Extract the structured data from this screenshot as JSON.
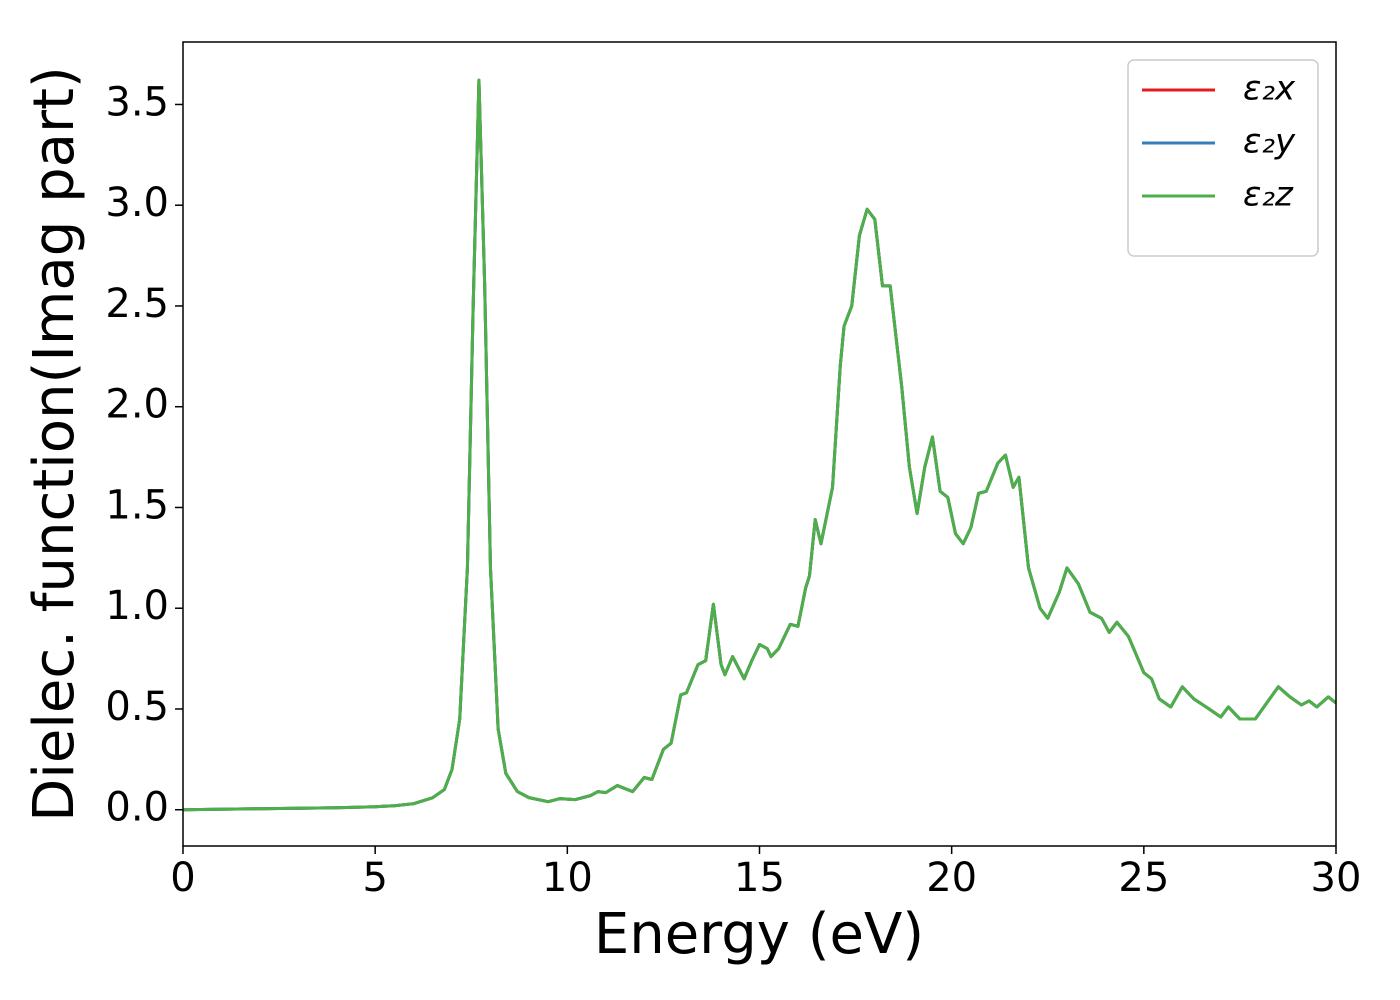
{
  "chart_data": {
    "type": "line",
    "xlabel": "Energy (eV)",
    "ylabel": "Dielec. function(Imag part)",
    "x": [
      0,
      2,
      4,
      5,
      5.5,
      6,
      6.5,
      6.8,
      7.0,
      7.2,
      7.4,
      7.55,
      7.7,
      7.85,
      8.0,
      8.2,
      8.4,
      8.7,
      9.0,
      9.5,
      9.8,
      10.2,
      10.6,
      10.8,
      11.0,
      11.3,
      11.7,
      12.0,
      12.2,
      12.5,
      12.7,
      12.95,
      13.1,
      13.4,
      13.6,
      13.8,
      14.0,
      14.1,
      14.3,
      14.6,
      14.8,
      15.0,
      15.2,
      15.3,
      15.5,
      15.8,
      16.0,
      16.2,
      16.3,
      16.45,
      16.6,
      16.9,
      17.1,
      17.2,
      17.4,
      17.6,
      17.8,
      18.0,
      18.2,
      18.4,
      18.7,
      18.9,
      19.1,
      19.3,
      19.5,
      19.7,
      19.9,
      20.1,
      20.3,
      20.5,
      20.7,
      20.9,
      21.2,
      21.4,
      21.6,
      21.75,
      22.0,
      22.3,
      22.5,
      22.8,
      23.0,
      23.3,
      23.6,
      23.9,
      24.1,
      24.3,
      24.6,
      25.0,
      25.2,
      25.4,
      25.7,
      26.0,
      26.3,
      26.7,
      27.0,
      27.2,
      27.5,
      27.9,
      28.2,
      28.5,
      28.8,
      29.1,
      29.3,
      29.5,
      29.8,
      30
    ],
    "series": [
      {
        "name": "ε₂x",
        "color": "#e41a1c",
        "values": [
          0.0,
          0.005,
          0.01,
          0.015,
          0.02,
          0.03,
          0.06,
          0.1,
          0.2,
          0.45,
          1.2,
          2.5,
          3.62,
          2.6,
          1.2,
          0.4,
          0.18,
          0.09,
          0.06,
          0.04,
          0.055,
          0.05,
          0.07,
          0.09,
          0.085,
          0.12,
          0.09,
          0.16,
          0.15,
          0.3,
          0.33,
          0.57,
          0.58,
          0.72,
          0.74,
          1.02,
          0.72,
          0.67,
          0.76,
          0.65,
          0.74,
          0.82,
          0.8,
          0.76,
          0.8,
          0.92,
          0.91,
          1.1,
          1.16,
          1.44,
          1.32,
          1.6,
          2.2,
          2.4,
          2.5,
          2.85,
          2.98,
          2.93,
          2.6,
          2.6,
          2.1,
          1.7,
          1.47,
          1.7,
          1.85,
          1.58,
          1.55,
          1.37,
          1.32,
          1.4,
          1.57,
          1.58,
          1.72,
          1.76,
          1.6,
          1.65,
          1.2,
          1.0,
          0.95,
          1.08,
          1.2,
          1.12,
          0.98,
          0.95,
          0.88,
          0.93,
          0.86,
          0.68,
          0.65,
          0.55,
          0.51,
          0.61,
          0.55,
          0.5,
          0.46,
          0.51,
          0.45,
          0.45,
          0.53,
          0.61,
          0.56,
          0.52,
          0.54,
          0.51,
          0.56,
          0.53
        ]
      },
      {
        "name": "ε₂y",
        "color": "#377eb8",
        "values": [
          0.0,
          0.005,
          0.01,
          0.015,
          0.02,
          0.03,
          0.06,
          0.1,
          0.2,
          0.45,
          1.2,
          2.5,
          3.62,
          2.6,
          1.2,
          0.4,
          0.18,
          0.09,
          0.06,
          0.04,
          0.055,
          0.05,
          0.07,
          0.09,
          0.085,
          0.12,
          0.09,
          0.16,
          0.15,
          0.3,
          0.33,
          0.57,
          0.58,
          0.72,
          0.74,
          1.02,
          0.72,
          0.67,
          0.76,
          0.65,
          0.74,
          0.82,
          0.8,
          0.76,
          0.8,
          0.92,
          0.91,
          1.1,
          1.16,
          1.44,
          1.32,
          1.6,
          2.2,
          2.4,
          2.5,
          2.85,
          2.98,
          2.93,
          2.6,
          2.6,
          2.1,
          1.7,
          1.47,
          1.7,
          1.85,
          1.58,
          1.55,
          1.37,
          1.32,
          1.4,
          1.57,
          1.58,
          1.72,
          1.76,
          1.6,
          1.65,
          1.2,
          1.0,
          0.95,
          1.08,
          1.2,
          1.12,
          0.98,
          0.95,
          0.88,
          0.93,
          0.86,
          0.68,
          0.65,
          0.55,
          0.51,
          0.61,
          0.55,
          0.5,
          0.46,
          0.51,
          0.45,
          0.45,
          0.53,
          0.61,
          0.56,
          0.52,
          0.54,
          0.51,
          0.56,
          0.53
        ]
      },
      {
        "name": "ε₂z",
        "color": "#4daf4a",
        "values": [
          0.0,
          0.005,
          0.01,
          0.015,
          0.02,
          0.03,
          0.06,
          0.1,
          0.2,
          0.45,
          1.2,
          2.5,
          3.62,
          2.6,
          1.2,
          0.4,
          0.18,
          0.09,
          0.06,
          0.04,
          0.055,
          0.05,
          0.07,
          0.09,
          0.085,
          0.12,
          0.09,
          0.16,
          0.15,
          0.3,
          0.33,
          0.57,
          0.58,
          0.72,
          0.74,
          1.02,
          0.72,
          0.67,
          0.76,
          0.65,
          0.74,
          0.82,
          0.8,
          0.76,
          0.8,
          0.92,
          0.91,
          1.1,
          1.16,
          1.44,
          1.32,
          1.6,
          2.2,
          2.4,
          2.5,
          2.85,
          2.98,
          2.93,
          2.6,
          2.6,
          2.1,
          1.7,
          1.47,
          1.7,
          1.85,
          1.58,
          1.55,
          1.37,
          1.32,
          1.4,
          1.57,
          1.58,
          1.72,
          1.76,
          1.6,
          1.65,
          1.2,
          1.0,
          0.95,
          1.08,
          1.2,
          1.12,
          0.98,
          0.95,
          0.88,
          0.93,
          0.86,
          0.68,
          0.65,
          0.55,
          0.51,
          0.61,
          0.55,
          0.5,
          0.46,
          0.51,
          0.45,
          0.45,
          0.53,
          0.61,
          0.56,
          0.52,
          0.54,
          0.51,
          0.56,
          0.53
        ]
      }
    ],
    "xlim": [
      0,
      30
    ],
    "xticks": [
      0,
      5,
      10,
      15,
      20,
      25,
      30
    ],
    "ylim": [
      -0.18,
      3.81
    ],
    "yticks": [
      {
        "value": 0,
        "label": "0.0"
      },
      0.5,
      {
        "value": 1,
        "label": "1.0"
      },
      1.5,
      {
        "value": 2,
        "label": "2.0"
      },
      2.5,
      {
        "value": 3,
        "label": "3.0"
      },
      3.5
    ],
    "grid": false,
    "legend": "upper-right"
  }
}
